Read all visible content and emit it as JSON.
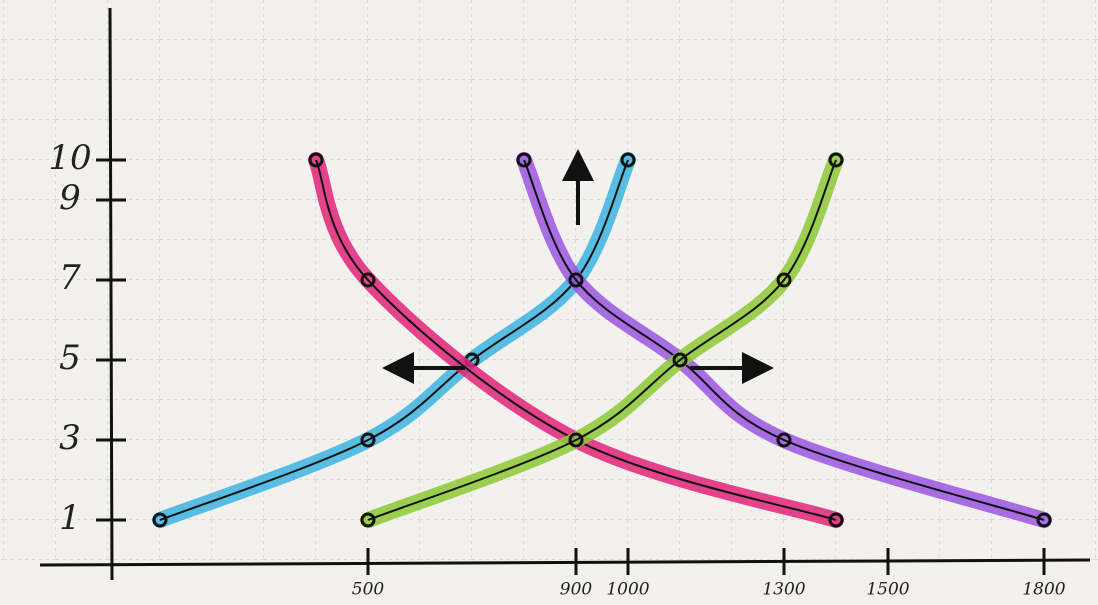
{
  "chart_data": {
    "type": "line",
    "xlim": [
      0,
      1900
    ],
    "ylim": [
      0,
      13.5
    ],
    "xticks": [
      500,
      900,
      1000,
      1300,
      1500,
      1800
    ],
    "yticks": [
      1,
      3,
      5,
      7,
      9,
      10
    ],
    "series": [
      {
        "color": "#3bb4e0",
        "x": [
          100,
          500,
          700,
          900,
          1000
        ],
        "values": [
          1,
          3,
          5,
          7,
          10
        ]
      },
      {
        "color": "#e0257a",
        "x": [
          400,
          500,
          900,
          1400
        ],
        "values": [
          10,
          7,
          3,
          1
        ]
      },
      {
        "color": "#9a55e0",
        "x": [
          800,
          900,
          1100,
          1300,
          1800
        ],
        "values": [
          10,
          7,
          5,
          3,
          1
        ]
      },
      {
        "color": "#8cc832",
        "x": [
          500,
          900,
          1100,
          1300,
          1400
        ],
        "values": [
          1,
          3,
          5,
          7,
          10
        ]
      }
    ]
  }
}
